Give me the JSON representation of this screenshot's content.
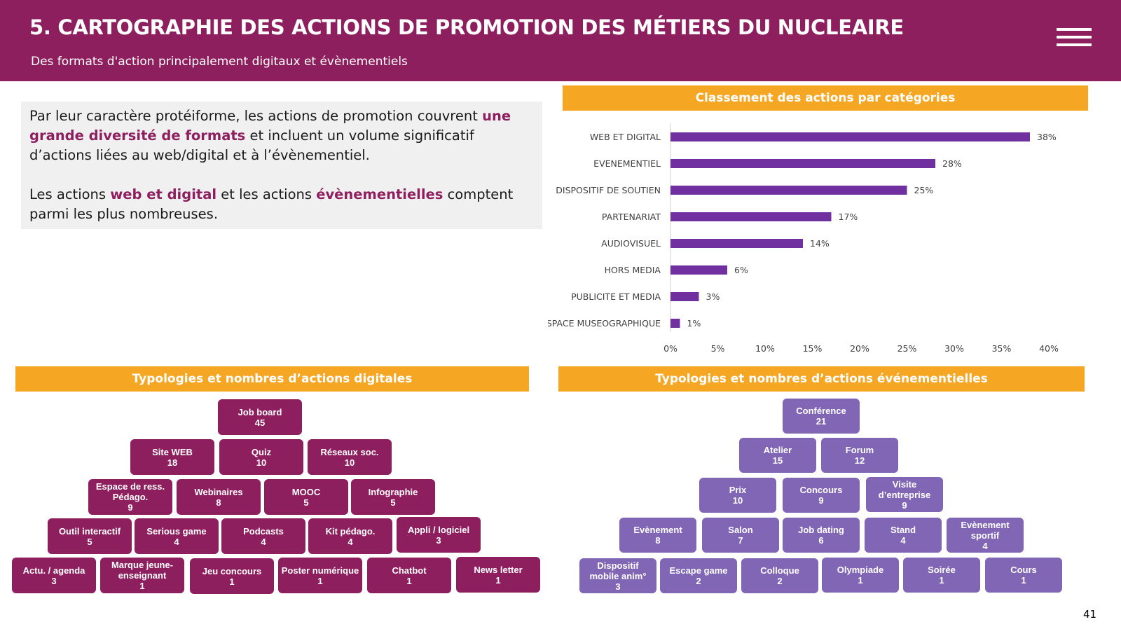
{
  "header": {
    "title": "5. CARTOGRAPHIE DES ACTIONS DE PROMOTION DES MÉTIERS DU NUCLEAIRE",
    "subtitle": "Des formats d'action principalement digitaux et évènementiels"
  },
  "intro": {
    "p1_a": "Par leur caractère protéiforme, les actions de promotion couvrent ",
    "p1_hl": "une grande diversité de formats",
    "p1_b": " et incluent un volume significatif d’actions liées au web/digital et à l’évènementiel.",
    "p2_a": "Les actions ",
    "p2_hl1": "web et digital",
    "p2_b": " et les actions ",
    "p2_hl2": "évènementielles",
    "p2_c": " comptent parmi les plus nombreuses."
  },
  "sections": {
    "chart_title": "Classement des actions par catégories",
    "digital_title": "Typologies et nombres d’actions digitales",
    "event_title": "Typologies et nombres d’actions événementielles"
  },
  "chart_data": {
    "type": "bar",
    "orientation": "horizontal",
    "title": "Classement des actions par catégories",
    "categories": [
      "WEB ET DIGITAL",
      "EVENEMENTIEL",
      "DISPOSITIF DE SOUTIEN",
      "PARTENARIAT",
      "AUDIOVISUEL",
      "HORS MEDIA",
      "PUBLICITE ET MEDIA",
      "ESPACE MUSEOGRAPHIQUE"
    ],
    "values": [
      38,
      28,
      25,
      17,
      14,
      6,
      3,
      1
    ],
    "value_labels": [
      "38%",
      "28%",
      "25%",
      "17%",
      "14%",
      "6%",
      "3%",
      "1%"
    ],
    "xlim": [
      0,
      40
    ],
    "xticks": [
      "0%",
      "5%",
      "10%",
      "15%",
      "20%",
      "25%",
      "30%",
      "35%",
      "40%"
    ],
    "bar_color": "#7030a0",
    "grid": false
  },
  "digital_actions": [
    {
      "label": "Job board",
      "count": "45"
    },
    {
      "label": "Site WEB",
      "count": "18"
    },
    {
      "label": "Quiz",
      "count": "10"
    },
    {
      "label": "Réseaux soc.",
      "count": "10"
    },
    {
      "label": "Espace de ress. Pédago.",
      "count": "9"
    },
    {
      "label": "Webinaires",
      "count": "8"
    },
    {
      "label": "MOOC",
      "count": "5"
    },
    {
      "label": "Infographie",
      "count": "5"
    },
    {
      "label": "Outil interactif",
      "count": "5"
    },
    {
      "label": "Serious game",
      "count": "4"
    },
    {
      "label": "Podcasts",
      "count": "4"
    },
    {
      "label": "Kit pédago.",
      "count": "4"
    },
    {
      "label": "Appli / logiciel",
      "count": "3"
    },
    {
      "label": "Actu. / agenda",
      "count": "3"
    },
    {
      "label": "Marque jeune-enseignant",
      "count": "1"
    },
    {
      "label": "Jeu concours",
      "count": "1"
    },
    {
      "label": "Poster numérique",
      "count": "1"
    },
    {
      "label": "Chatbot",
      "count": "1"
    },
    {
      "label": "News letter",
      "count": "1"
    }
  ],
  "event_actions": [
    {
      "label": "Conférence",
      "count": "21"
    },
    {
      "label": "Atelier",
      "count": "15"
    },
    {
      "label": "Forum",
      "count": "12"
    },
    {
      "label": "Prix",
      "count": "10"
    },
    {
      "label": "Concours",
      "count": "9"
    },
    {
      "label": "Visite d’entreprise",
      "count": "9"
    },
    {
      "label": "Evènement",
      "count": "8"
    },
    {
      "label": "Salon",
      "count": "7"
    },
    {
      "label": "Job dating",
      "count": "6"
    },
    {
      "label": "Stand",
      "count": "4"
    },
    {
      "label": "Evènement sportif",
      "count": "4"
    },
    {
      "label": "Dispositif mobile anim°",
      "count": "3"
    },
    {
      "label": "Escape game",
      "count": "2"
    },
    {
      "label": "Colloque",
      "count": "2"
    },
    {
      "label": "Olympiade",
      "count": "1"
    },
    {
      "label": "Soirée",
      "count": "1"
    },
    {
      "label": "Cours",
      "count": "1"
    }
  ],
  "colors": {
    "brand": "#8e1f5f",
    "accent": "#f5a623",
    "event": "#8066b5"
  },
  "page_number": "41"
}
